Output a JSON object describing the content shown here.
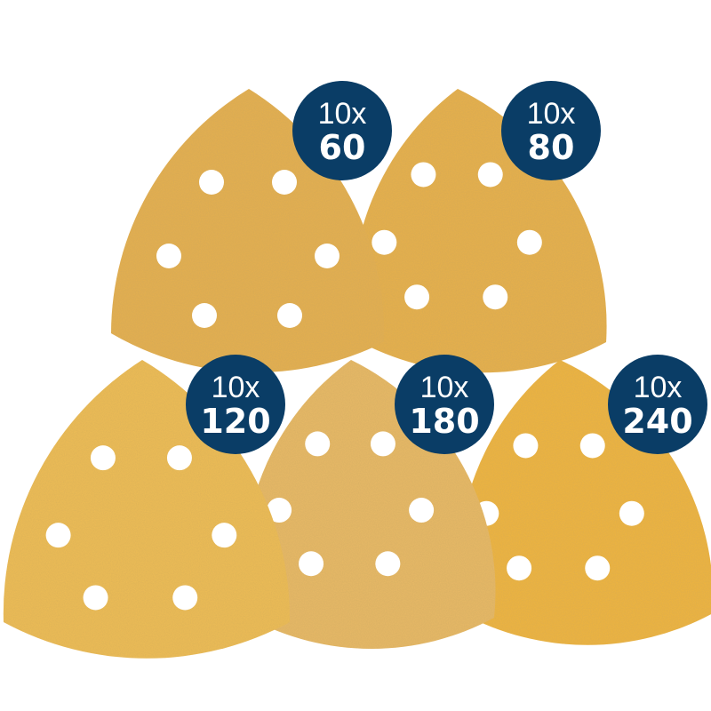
{
  "badge_color": "#0a3d66",
  "sheets": [
    {
      "quantity": "10x",
      "grit": "60",
      "color": "#e6b050"
    },
    {
      "quantity": "10x",
      "grit": "80",
      "color": "#e8b14c"
    },
    {
      "quantity": "10x",
      "grit": "120",
      "color": "#efbd55"
    },
    {
      "quantity": "10x",
      "grit": "180",
      "color": "#e9ba66"
    },
    {
      "quantity": "10x",
      "grit": "240",
      "color": "#f0b53c"
    }
  ]
}
